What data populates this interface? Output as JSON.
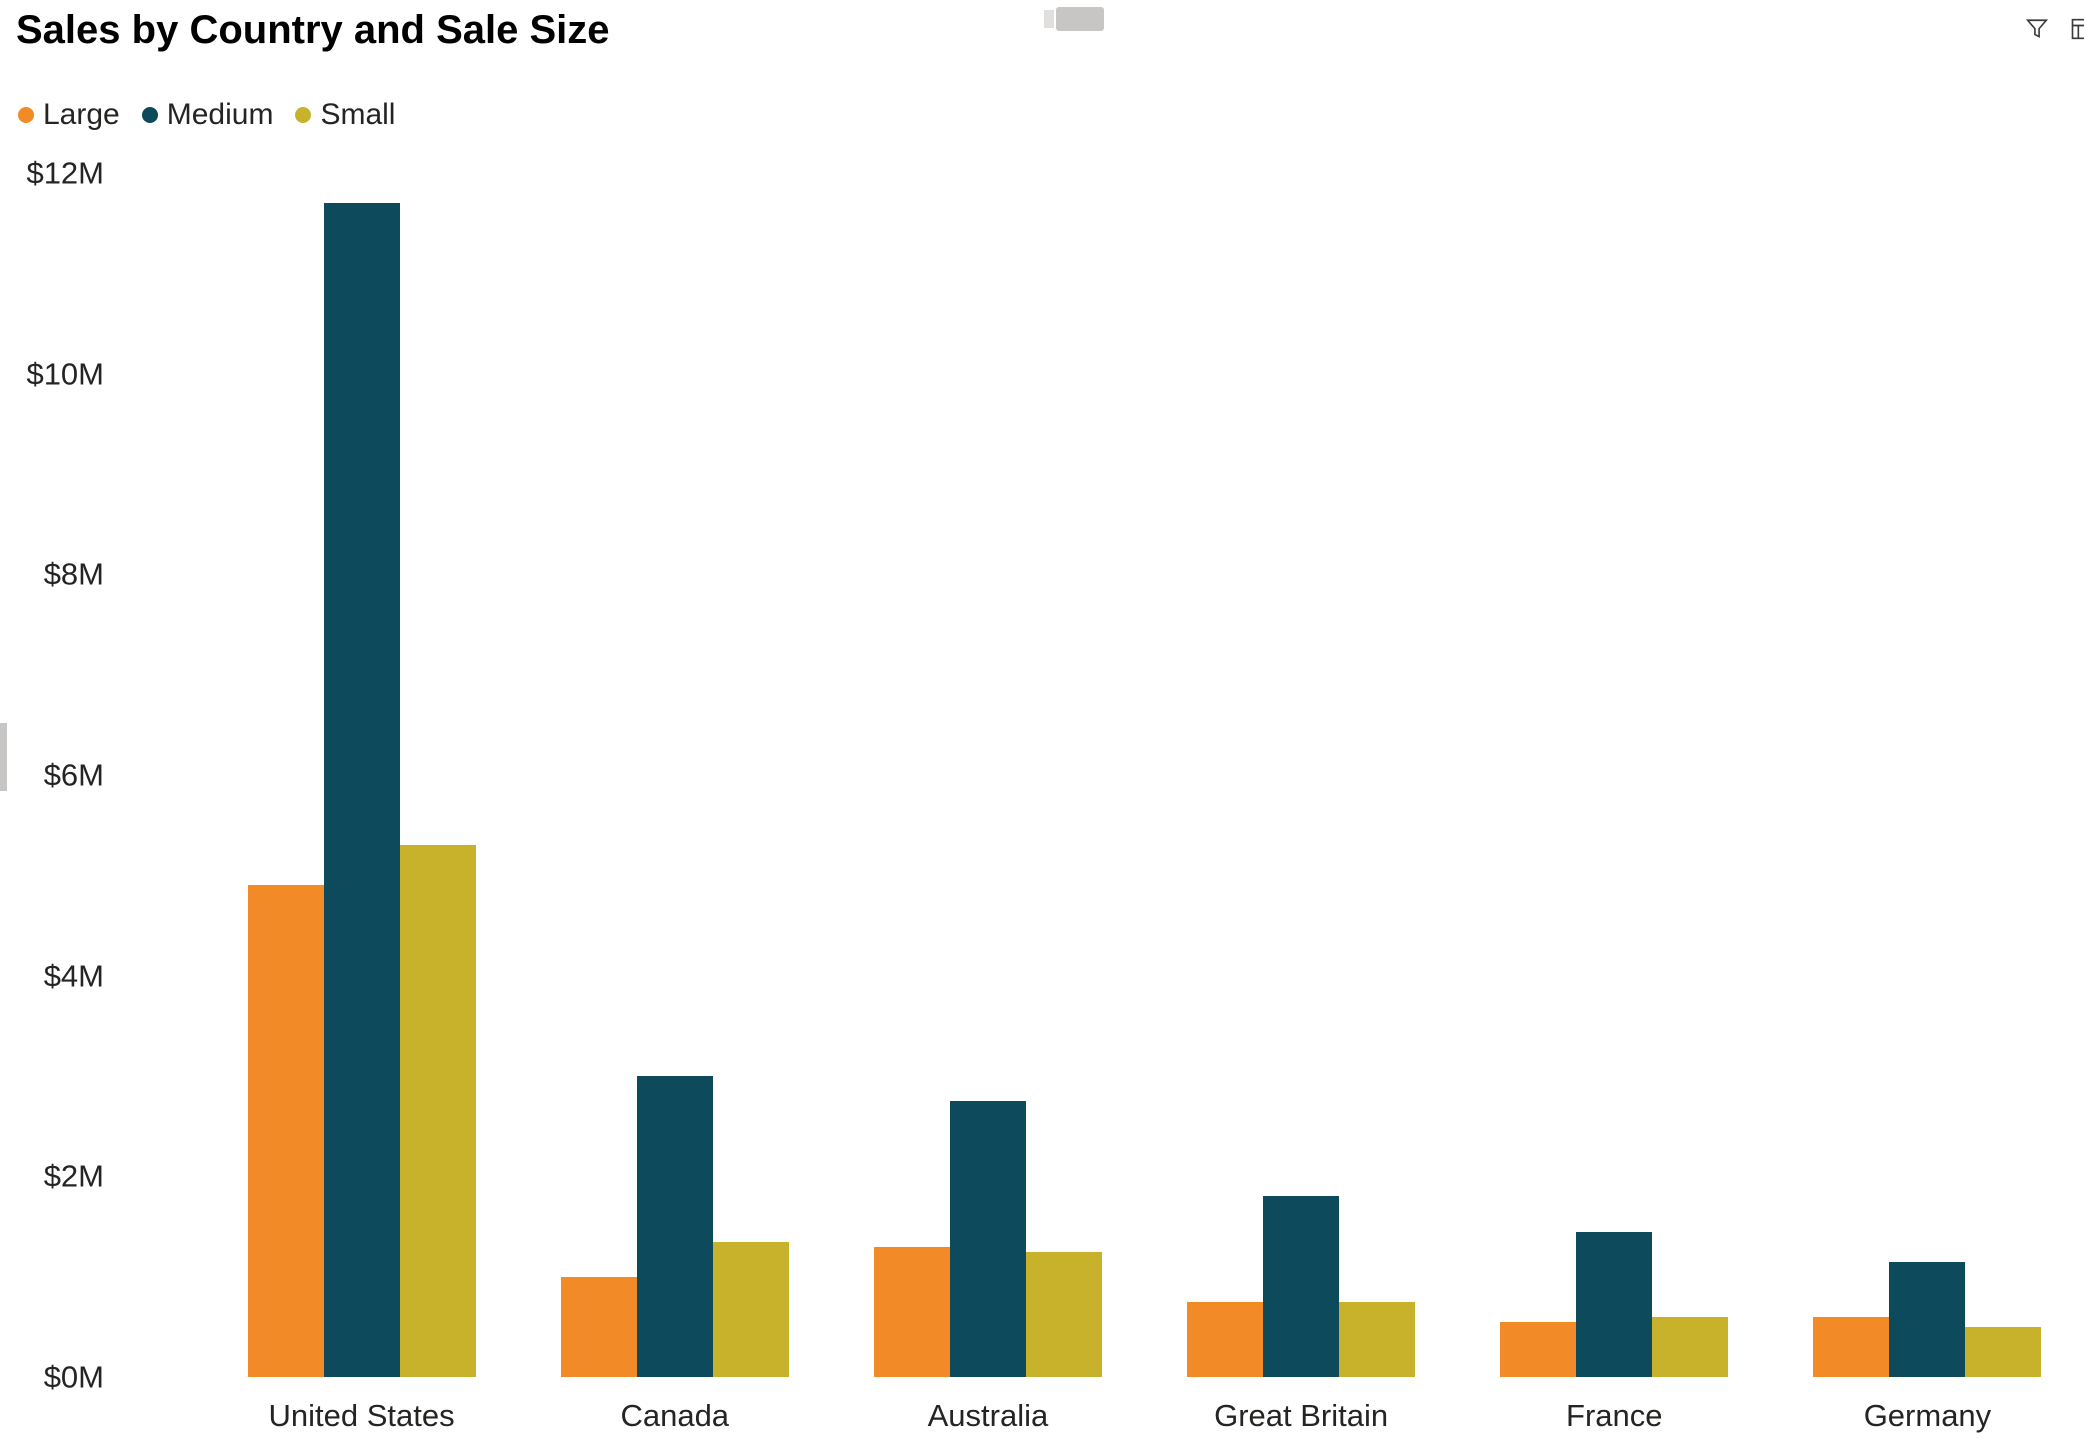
{
  "window": {
    "background": "#ffffff"
  },
  "header": {
    "title": "Sales by Country and Sale Size"
  },
  "toolbar_icons": [
    {
      "name": "filter-icon"
    },
    {
      "name": "more-options-icon",
      "partially_visible": true
    }
  ],
  "legend": {
    "items": [
      {
        "label": "Large",
        "color": "#F28A28"
      },
      {
        "label": "Medium",
        "color": "#0D4A5C"
      },
      {
        "label": "Small",
        "color": "#C9B22B"
      }
    ]
  },
  "chart_data": {
    "type": "bar",
    "title": "Sales by Country and Sale Size",
    "categories": [
      "United States",
      "Canada",
      "Australia",
      "Great Britain",
      "France",
      "Germany"
    ],
    "series": [
      {
        "name": "Large",
        "color": "#F28A28",
        "values": [
          4.9,
          1.0,
          1.3,
          0.75,
          0.55,
          0.6
        ]
      },
      {
        "name": "Medium",
        "color": "#0D4A5C",
        "values": [
          11.7,
          3.0,
          2.75,
          1.8,
          1.45,
          1.15
        ]
      },
      {
        "name": "Small",
        "color": "#C9B22B",
        "values": [
          5.3,
          1.35,
          1.25,
          0.75,
          0.6,
          0.5
        ]
      }
    ],
    "value_unit": "USD millions",
    "xlabel": "",
    "ylabel": "",
    "ylim": [
      0,
      12
    ],
    "yticks": [
      {
        "value": 0,
        "label": "$0M"
      },
      {
        "value": 2,
        "label": "$2M"
      },
      {
        "value": 4,
        "label": "$4M"
      },
      {
        "value": 6,
        "label": "$6M"
      },
      {
        "value": 8,
        "label": "$8M"
      },
      {
        "value": 10,
        "label": "$10M"
      },
      {
        "value": 12,
        "label": "$12M"
      }
    ],
    "grid": false,
    "legend_position": "top-left"
  }
}
